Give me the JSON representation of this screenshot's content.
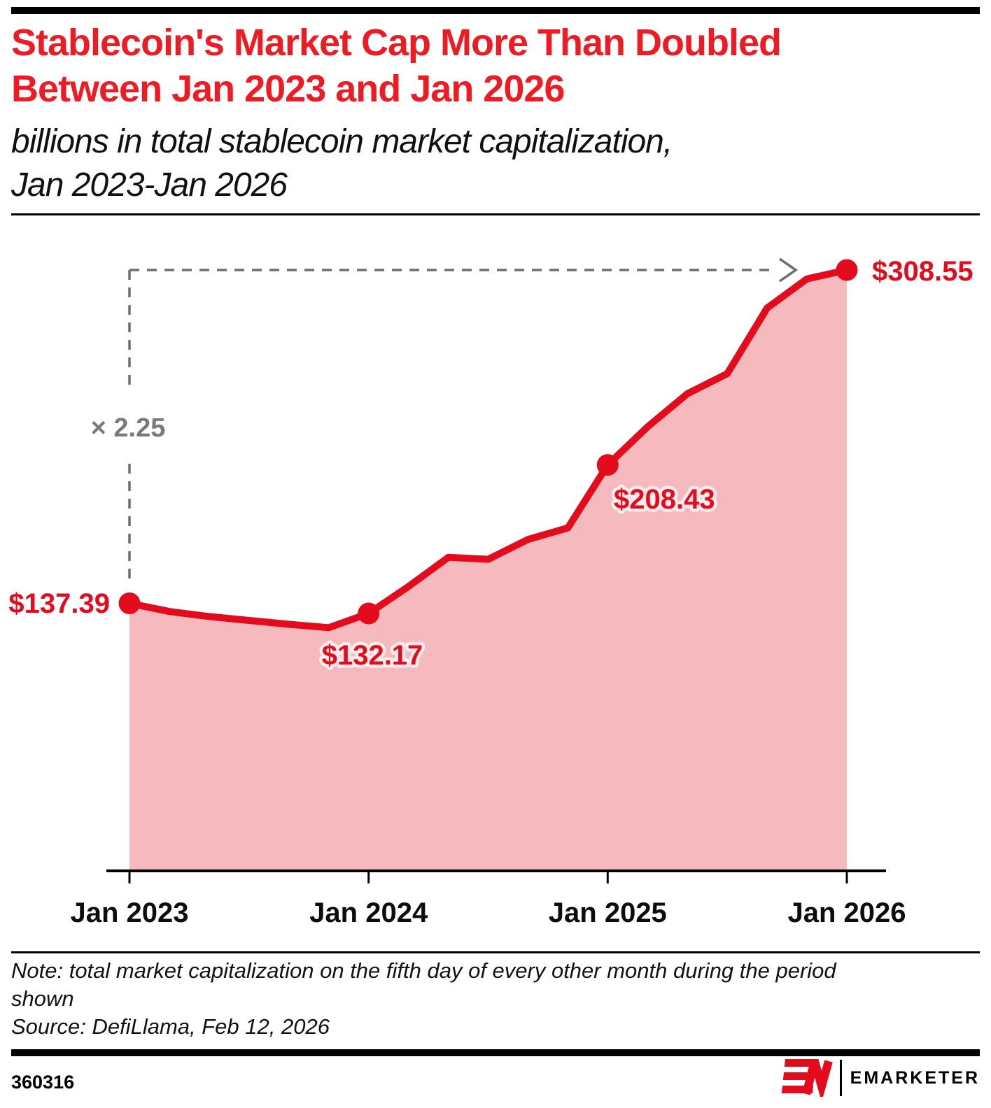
{
  "header": {
    "title_line1": "Stablecoin's Market Cap More Than Doubled",
    "title_line2": "Between Jan 2023 and Jan 2026",
    "subtitle_line1": "billions in total stablecoin market capitalization,",
    "subtitle_line2": "Jan 2023-Jan 2026"
  },
  "chart_data": {
    "type": "area",
    "title": "Stablecoin's Market Cap More Than Doubled Between Jan 2023 and Jan 2026",
    "subtitle": "billions in total stablecoin market capitalization, Jan 2023-Jan 2026",
    "x": [
      "Jan 2023",
      "Mar 2023",
      "May 2023",
      "Jul 2023",
      "Sep 2023",
      "Nov 2023",
      "Jan 2024",
      "Mar 2024",
      "May 2024",
      "Jul 2024",
      "Sep 2024",
      "Nov 2024",
      "Jan 2025",
      "Mar 2025",
      "May 2025",
      "Jul 2025",
      "Sep 2025",
      "Nov 2025",
      "Jan 2026"
    ],
    "values": [
      137.39,
      133.2,
      130.6,
      128.6,
      126.6,
      124.9,
      132.17,
      146.0,
      161.0,
      160.0,
      170.2,
      176.1,
      208.43,
      228.0,
      245.0,
      255.3,
      289.0,
      304.0,
      308.55
    ],
    "highlight_indices": [
      0,
      6,
      12,
      18
    ],
    "point_labels": [
      {
        "text": "$137.39",
        "x": "Jan 2023",
        "value": 137.39
      },
      {
        "text": "$132.17",
        "x": "Jan 2024",
        "value": 132.17
      },
      {
        "text": "$208.43",
        "x": "Jan 2025",
        "value": 208.43
      },
      {
        "text": "$308.55",
        "x": "Jan 2026",
        "value": 308.55
      }
    ],
    "annotation": "× 2.25",
    "x_tick_labels": [
      "Jan 2023",
      "Jan 2024",
      "Jan 2025",
      "Jan 2026"
    ],
    "xlabel": "",
    "ylabel": "billions of dollars",
    "ylim": [
      0,
      330
    ],
    "grid": false,
    "legend": false,
    "colors": {
      "line": "#e30b1c",
      "area_fill": "#f5b9be",
      "title_red": "#ed1c24",
      "annotation_gray": "#7a7a7a",
      "axis_black": "#000000"
    }
  },
  "footer": {
    "note_line1": "Note: total market capitalization on the fifth day of every other month during the period",
    "note_line2": "shown",
    "source": "Source: DefiLlama, Feb 12, 2026",
    "chart_id": "360316",
    "brand": "EMARKETER"
  }
}
